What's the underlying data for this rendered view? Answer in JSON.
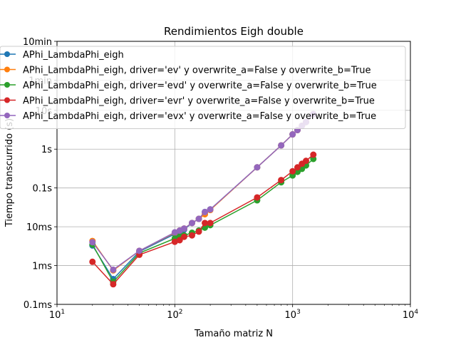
{
  "chart_data": {
    "type": "line",
    "title": "Rendimientos Eigh double",
    "xlabel": "Tamaño matriz N",
    "ylabel": "Tiempo transcurrido (s)",
    "xscale": "log",
    "yscale": "log",
    "xlim": [
      10,
      10000
    ],
    "ylim": [
      0.0001,
      600
    ],
    "grid": true,
    "legend_position": "top-left",
    "x_ticks": [
      {
        "value": 10,
        "base": "10",
        "exp": "1"
      },
      {
        "value": 100,
        "base": "10",
        "exp": "2"
      },
      {
        "value": 1000,
        "base": "10",
        "exp": "3"
      },
      {
        "value": 10000,
        "base": "10",
        "exp": "4"
      }
    ],
    "y_ticks": [
      {
        "value": 0.0001,
        "label": "0.1ms"
      },
      {
        "value": 0.001,
        "label": "1ms"
      },
      {
        "value": 0.01,
        "label": "10ms"
      },
      {
        "value": 0.1,
        "label": "0.1s"
      },
      {
        "value": 1,
        "label": "1s"
      },
      {
        "value": 10,
        "label": "10s"
      },
      {
        "value": 60,
        "label": "1min"
      },
      {
        "value": 600,
        "label": "10min"
      }
    ],
    "series": [
      {
        "name": "APhi_LambdaPhi_eigh",
        "color": "#1f77b4",
        "x": [
          20,
          30,
          50,
          100,
          110,
          120,
          140,
          160,
          180,
          200,
          500,
          800,
          1000,
          1100,
          1200,
          1300,
          1500
        ],
        "y": [
          0.0033,
          0.00045,
          0.0023,
          0.0065,
          0.0075,
          0.0085,
          0.0125,
          0.016,
          0.024,
          0.028,
          0.34,
          1.25,
          2.4,
          3.1,
          4.0,
          5.0,
          8.0
        ]
      },
      {
        "name": "APhi_LambdaPhi_eigh, driver='ev' y overwrite_a=False y overwrite_b=True",
        "color": "#ff7f0e",
        "x": [
          20,
          30,
          50,
          100,
          110,
          120,
          140,
          160,
          180,
          200,
          500,
          800,
          1000,
          1100,
          1200,
          1300,
          1500
        ],
        "y": [
          0.0043,
          0.00075,
          0.0024,
          0.007,
          0.008,
          0.009,
          0.0125,
          0.016,
          0.021,
          0.027,
          0.34,
          1.25,
          2.4,
          3.1,
          4.0,
          5.0,
          8.0
        ]
      },
      {
        "name": "APhi_LambdaPhi_eigh, driver='evd' y overwrite_a=False y overwrite_b=True",
        "color": "#2ca02c",
        "x": [
          20,
          30,
          50,
          100,
          110,
          120,
          140,
          160,
          180,
          200,
          500,
          800,
          1000,
          1100,
          1200,
          1300,
          1500
        ],
        "y": [
          0.0035,
          0.00038,
          0.0021,
          0.005,
          0.0055,
          0.006,
          0.007,
          0.008,
          0.0095,
          0.011,
          0.048,
          0.14,
          0.21,
          0.26,
          0.31,
          0.38,
          0.56
        ]
      },
      {
        "name": "APhi_LambdaPhi_eigh, driver='evr' y overwrite_a=False y overwrite_b=True",
        "color": "#d62728",
        "x": [
          20,
          30,
          50,
          100,
          110,
          120,
          140,
          160,
          180,
          200,
          500,
          800,
          1000,
          1100,
          1200,
          1300,
          1500
        ],
        "y": [
          0.00125,
          0.00033,
          0.0019,
          0.0041,
          0.0045,
          0.0055,
          0.006,
          0.0075,
          0.0125,
          0.0125,
          0.057,
          0.16,
          0.27,
          0.34,
          0.42,
          0.5,
          0.72
        ]
      },
      {
        "name": "APhi_LambdaPhi_eigh, driver='evx' y overwrite_a=False y overwrite_b=True",
        "color": "#9467bd",
        "x": [
          20,
          30,
          50,
          100,
          110,
          120,
          140,
          160,
          180,
          200,
          500,
          800,
          1000,
          1100,
          1200,
          1300,
          1500
        ],
        "y": [
          0.004,
          0.00078,
          0.0024,
          0.0072,
          0.008,
          0.009,
          0.0125,
          0.016,
          0.024,
          0.028,
          0.34,
          1.25,
          2.4,
          3.1,
          4.0,
          5.0,
          8.0
        ]
      }
    ]
  }
}
